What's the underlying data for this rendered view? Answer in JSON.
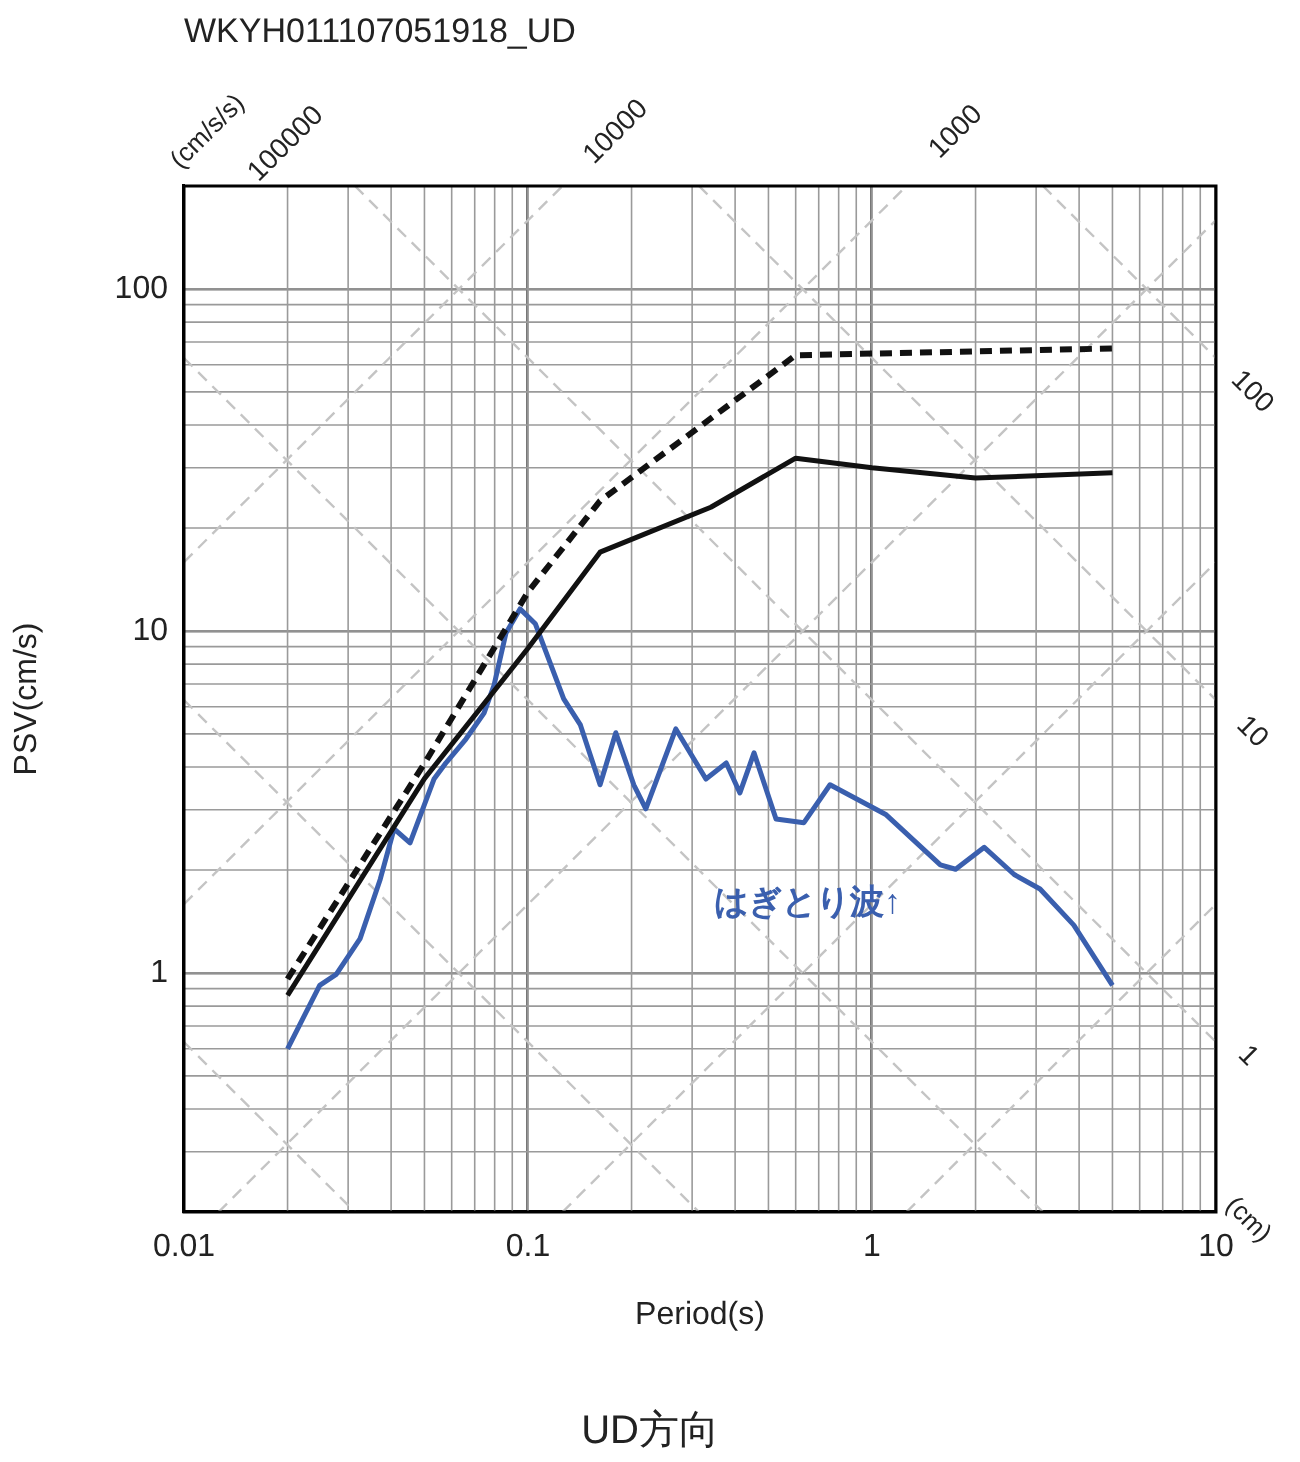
{
  "chart_data": {
    "type": "line",
    "title": "WKYH011107051918_UD",
    "xlabel": "Period(s)",
    "ylabel": "PSV(cm/s)",
    "log": "xy",
    "xlim": [
      0.01,
      10
    ],
    "ylim": [
      0.2,
      200
    ],
    "xticks": [
      0.01,
      0.1,
      1,
      10
    ],
    "yticks": [
      1,
      10,
      100
    ],
    "grid": true,
    "legend": false,
    "marker": "none",
    "series": [
      {
        "color": "#111111",
        "line_style": "solid",
        "x": [
          0.02,
          0.05,
          0.1,
          0.162,
          0.34,
          0.6,
          1.0,
          2.0,
          5
        ],
        "values": [
          0.86,
          3.7,
          8.9,
          17,
          23,
          32,
          30,
          28,
          29
        ]
      },
      {
        "color": "#111111",
        "line_style": "dashed",
        "x": [
          0.02,
          0.05,
          0.1,
          0.162,
          0.6,
          5
        ],
        "values": [
          0.96,
          4.1,
          13,
          24,
          64,
          67
        ]
      },
      {
        "color": "#3a5fae",
        "line_style": "solid",
        "x": [
          0.02,
          0.0248,
          0.0277,
          0.0325,
          0.0372,
          0.0408,
          0.0454,
          0.0533,
          0.0577,
          0.066,
          0.0745,
          0.0797,
          0.0863,
          0.0948,
          0.105,
          0.127,
          0.142,
          0.162,
          0.18,
          0.203,
          0.22,
          0.269,
          0.329,
          0.377,
          0.413,
          0.454,
          0.526,
          0.634,
          0.755,
          1.1,
          1.58,
          1.75,
          2.12,
          2.59,
          3.08,
          3.86,
          5
        ],
        "values": [
          0.6,
          0.92,
          0.99,
          1.26,
          1.88,
          2.64,
          2.4,
          3.69,
          4.11,
          4.83,
          5.75,
          6.95,
          9.86,
          11.6,
          10.5,
          6.33,
          5.31,
          3.55,
          5.04,
          3.55,
          3.02,
          5.17,
          3.69,
          4.11,
          3.36,
          4.4,
          2.82,
          2.75,
          3.55,
          2.9,
          2.07,
          2.01,
          2.33,
          1.94,
          1.76,
          1.38,
          0.92
        ]
      },
      {
        "color": "#c4c4c4",
        "line_style": "dashed",
        "x": [
          1.26,
          10
        ],
        "values": [
          0.2,
          1.59
        ]
      },
      {
        "color": "#c4c4c4",
        "line_style": "dashed",
        "x": [
          0.126,
          10
        ],
        "values": [
          0.2,
          15.9
        ]
      },
      {
        "color": "#c4c4c4",
        "line_style": "dashed",
        "x": [
          0.0126,
          10
        ],
        "values": [
          0.2,
          159
        ]
      },
      {
        "color": "#c4c4c4",
        "line_style": "dashed",
        "x": [
          0.01,
          1.26
        ],
        "values": [
          1.59,
          200
        ]
      },
      {
        "color": "#c4c4c4",
        "line_style": "dashed",
        "x": [
          0.01,
          0.126
        ],
        "values": [
          15.9,
          200
        ]
      },
      {
        "color": "#c4c4c4",
        "line_style": "dashed",
        "x": [
          0.01,
          0.0314
        ],
        "values": [
          0.628,
          0.2
        ]
      },
      {
        "color": "#c4c4c4",
        "line_style": "dashed",
        "x": [
          0.01,
          0.314
        ],
        "values": [
          6.28,
          0.2
        ]
      },
      {
        "color": "#c4c4c4",
        "line_style": "dashed",
        "x": [
          0.01,
          3.14
        ],
        "values": [
          62.8,
          0.2
        ]
      },
      {
        "color": "#c4c4c4",
        "line_style": "dashed",
        "x": [
          0.0314,
          10
        ],
        "values": [
          200,
          0.628
        ]
      },
      {
        "color": "#c4c4c4",
        "line_style": "dashed",
        "x": [
          0.314,
          10
        ],
        "values": [
          200,
          6.28
        ]
      },
      {
        "color": "#c4c4c4",
        "line_style": "dashed",
        "x": [
          3.14,
          10
        ],
        "values": [
          200,
          62.8
        ]
      }
    ],
    "annotations": [
      "(cm/s/s)",
      "100000",
      "10000",
      "1000",
      "100",
      "10",
      "1",
      "(cm)",
      "はぎとり波↑",
      "UD方向"
    ]
  }
}
